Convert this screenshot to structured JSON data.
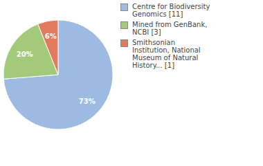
{
  "chart_data": {
    "type": "pie",
    "categories": [
      "Centre for Biodiversity Genomics [11]",
      "Mined from GenBank, NCBI [3]",
      "Smithsonian Institution, National Museum of Natural History... [1]"
    ],
    "values": [
      73,
      20,
      6
    ],
    "value_labels": [
      "73%",
      "20%",
      "6%"
    ],
    "data_labels": true,
    "colors": [
      "#9dbae1",
      "#a3c97b",
      "#df7b5e"
    ],
    "legend": "upper right"
  }
}
